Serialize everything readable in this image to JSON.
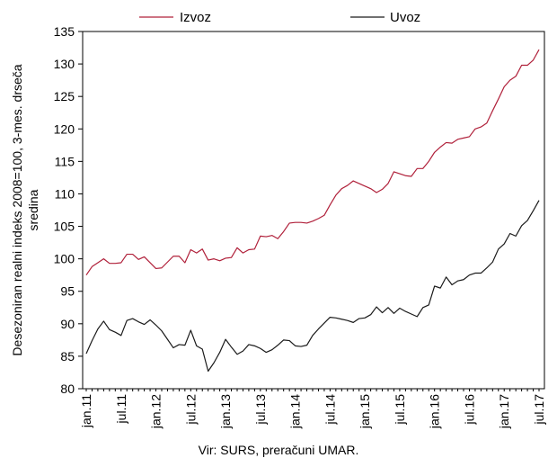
{
  "chart_data": {
    "type": "line",
    "ylabel": "Desezoniran realni indeks 2008=100, 3-mes. drseča sredina",
    "ylabel_lines": [
      "Desezoniran realni indeks 2008=100, 3-mes. drseča",
      "sredina"
    ],
    "source": "Vir: SURS, preračuni UMAR.",
    "ylim": [
      80,
      135
    ],
    "yticks": [
      80,
      85,
      90,
      95,
      100,
      105,
      110,
      115,
      120,
      125,
      130,
      135
    ],
    "x_start": "jan.11",
    "x_end": "jul.17",
    "x_ticks": [
      "jan.11",
      "jul.11",
      "jan.12",
      "jul.12",
      "jan.13",
      "jul.13",
      "jan.14",
      "jul.14",
      "jan.15",
      "jul.15",
      "jan.16",
      "jul.16",
      "jan.17",
      "jul.17"
    ],
    "legend_position": "top",
    "grid": false,
    "series": [
      {
        "name": "Izvoz",
        "color": "#b0203a",
        "values": [
          97.5,
          98.8,
          99.4,
          100.0,
          99.3,
          99.3,
          99.4,
          100.7,
          100.7,
          99.9,
          100.3,
          99.4,
          98.5,
          98.6,
          99.5,
          100.4,
          100.4,
          99.4,
          101.4,
          100.9,
          101.5,
          99.8,
          100.0,
          99.7,
          100.1,
          100.2,
          101.7,
          100.9,
          101.4,
          101.5,
          103.5,
          103.4,
          103.6,
          103.1,
          104.2,
          105.5,
          105.6,
          105.6,
          105.5,
          105.8,
          106.2,
          106.7,
          108.3,
          109.8,
          110.8,
          111.3,
          112.0,
          111.6,
          111.2,
          110.8,
          110.2,
          110.7,
          111.6,
          113.4,
          113.1,
          112.8,
          112.7,
          113.9,
          113.9,
          115.0,
          116.4,
          117.2,
          117.9,
          117.8,
          118.4,
          118.6,
          118.8,
          120.0,
          120.3,
          120.9,
          122.8,
          124.6,
          126.5,
          127.5,
          128.1,
          129.8,
          129.8,
          130.6,
          132.2
        ]
      },
      {
        "name": "Uvoz",
        "color": "#1a1a1a",
        "values": [
          85.4,
          87.4,
          89.2,
          90.4,
          89.1,
          88.7,
          88.2,
          90.5,
          90.8,
          90.3,
          89.9,
          90.6,
          89.8,
          88.9,
          87.6,
          86.3,
          86.8,
          86.7,
          89.0,
          86.6,
          86.1,
          82.7,
          84.0,
          85.6,
          87.6,
          86.4,
          85.3,
          85.8,
          86.8,
          86.6,
          86.2,
          85.6,
          86.0,
          86.7,
          87.5,
          87.4,
          86.6,
          86.5,
          86.7,
          88.2,
          89.2,
          90.1,
          91.0,
          90.9,
          90.7,
          90.5,
          90.2,
          90.8,
          90.9,
          91.4,
          92.6,
          91.7,
          92.5,
          91.6,
          92.4,
          91.9,
          91.5,
          91.1,
          92.5,
          92.9,
          95.8,
          95.5,
          97.2,
          96.0,
          96.6,
          96.8,
          97.5,
          97.8,
          97.8,
          98.6,
          99.5,
          101.5,
          102.3,
          103.9,
          103.5,
          105.1,
          105.9,
          107.4,
          109.0
        ]
      }
    ]
  }
}
